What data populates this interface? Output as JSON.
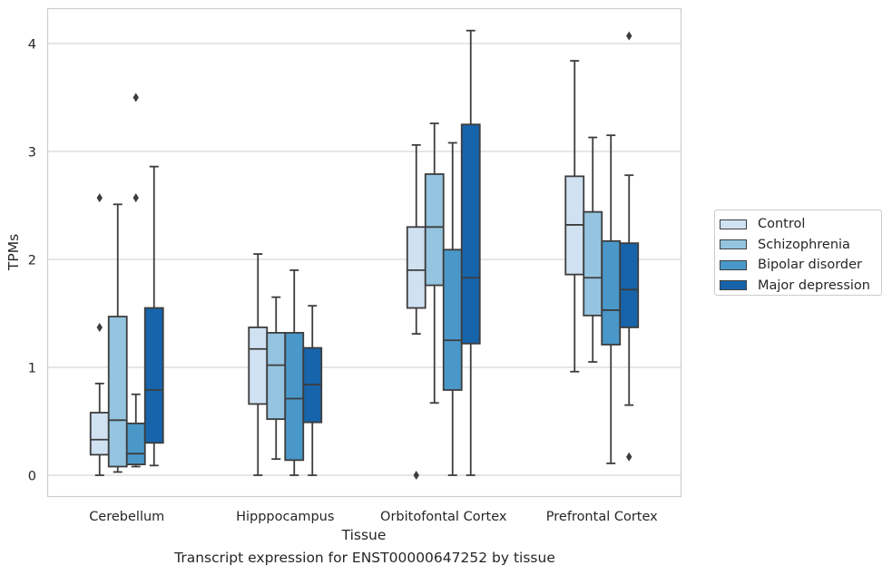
{
  "chart_data": {
    "type": "box",
    "title": "",
    "xlabel": "Tissue",
    "ylabel": "TPMs",
    "caption": "Transcript expression for ENST00000647252 by tissue",
    "ylim": [
      -0.2,
      4.35
    ],
    "yticks": [
      0,
      1,
      2,
      3,
      4
    ],
    "grid": "horizontal",
    "legend_position": "right",
    "categories": [
      "Cerebellum",
      "Hipppocampus",
      "Orbitofontal Cortex",
      "Prefrontal Cortex"
    ],
    "series": [
      {
        "name": "Control",
        "color": "#d0e1f2",
        "boxes": [
          {
            "whisker_low": 0.0,
            "q1": 0.19,
            "median": 0.33,
            "q3": 0.58,
            "whisker_high": 0.85,
            "outliers": [
              1.37,
              2.57
            ]
          },
          {
            "whisker_low": 0.0,
            "q1": 0.66,
            "median": 1.17,
            "q3": 1.37,
            "whisker_high": 2.05,
            "outliers": []
          },
          {
            "whisker_low": 1.31,
            "q1": 1.55,
            "median": 1.9,
            "q3": 2.3,
            "whisker_high": 3.06,
            "outliers": [
              0.0
            ]
          },
          {
            "whisker_low": 0.96,
            "q1": 1.86,
            "median": 2.32,
            "q3": 2.77,
            "whisker_high": 3.84,
            "outliers": []
          }
        ]
      },
      {
        "name": "Schizophrenia",
        "color": "#94c4df",
        "boxes": [
          {
            "whisker_low": 0.03,
            "q1": 0.08,
            "median": 0.51,
            "q3": 1.47,
            "whisker_high": 2.51,
            "outliers": []
          },
          {
            "whisker_low": 0.15,
            "q1": 0.52,
            "median": 1.02,
            "q3": 1.32,
            "whisker_high": 1.65,
            "outliers": []
          },
          {
            "whisker_low": 0.67,
            "q1": 1.76,
            "median": 2.3,
            "q3": 2.79,
            "whisker_high": 3.26,
            "outliers": []
          },
          {
            "whisker_low": 1.05,
            "q1": 1.48,
            "median": 1.83,
            "q3": 2.44,
            "whisker_high": 3.13,
            "outliers": []
          }
        ]
      },
      {
        "name": "Bipolar disorder",
        "color": "#4a98c9",
        "boxes": [
          {
            "whisker_low": 0.08,
            "q1": 0.1,
            "median": 0.2,
            "q3": 0.48,
            "whisker_high": 0.75,
            "outliers": [
              2.57,
              3.5
            ]
          },
          {
            "whisker_low": 0.0,
            "q1": 0.14,
            "median": 0.71,
            "q3": 1.32,
            "whisker_high": 1.9,
            "outliers": []
          },
          {
            "whisker_low": 0.0,
            "q1": 0.79,
            "median": 1.25,
            "q3": 2.09,
            "whisker_high": 3.08,
            "outliers": []
          },
          {
            "whisker_low": 0.11,
            "q1": 1.21,
            "median": 1.53,
            "q3": 2.17,
            "whisker_high": 3.15,
            "outliers": []
          }
        ]
      },
      {
        "name": "Major depression",
        "color": "#1764ab",
        "boxes": [
          {
            "whisker_low": 0.09,
            "q1": 0.3,
            "median": 0.79,
            "q3": 1.55,
            "whisker_high": 2.86,
            "outliers": []
          },
          {
            "whisker_low": 0.0,
            "q1": 0.49,
            "median": 0.84,
            "q3": 1.18,
            "whisker_high": 1.57,
            "outliers": []
          },
          {
            "whisker_low": 0.0,
            "q1": 1.22,
            "median": 1.83,
            "q3": 3.25,
            "whisker_high": 4.12,
            "outliers": []
          },
          {
            "whisker_low": 0.65,
            "q1": 1.37,
            "median": 1.72,
            "q3": 2.15,
            "whisker_high": 2.78,
            "outliers": [
              0.17,
              4.07
            ]
          }
        ]
      }
    ]
  }
}
